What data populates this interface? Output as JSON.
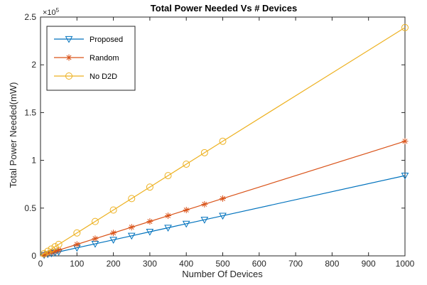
{
  "chart_data": {
    "type": "line",
    "title": "Total Power Needed Vs # Devices",
    "xlabel": "Number Of Devices",
    "ylabel": "Total Power Needed(mW)",
    "xlim": [
      0,
      1000
    ],
    "ylim": [
      0,
      250000
    ],
    "y_exponent_label": "×10",
    "y_exponent_power": "5",
    "x_ticks": [
      "0",
      "100",
      "200",
      "300",
      "400",
      "500",
      "600",
      "700",
      "800",
      "900",
      "1000"
    ],
    "y_ticks": [
      "0",
      "0.5",
      "1",
      "1.5",
      "2",
      "2.5"
    ],
    "grid": false,
    "legend_position": "top-left",
    "series": [
      {
        "name": "Proposed",
        "color": "#0072BD",
        "marker": "triangle-down",
        "x": [
          10,
          20,
          30,
          40,
          50,
          100,
          150,
          200,
          250,
          300,
          350,
          400,
          450,
          500,
          1000
        ],
        "y": [
          840,
          1680,
          2520,
          3360,
          4200,
          8400,
          12600,
          16800,
          21000,
          25200,
          29400,
          33600,
          37800,
          42000,
          84000
        ]
      },
      {
        "name": "Random",
        "color": "#D95319",
        "marker": "star",
        "x": [
          10,
          20,
          30,
          40,
          50,
          100,
          150,
          200,
          250,
          300,
          350,
          400,
          450,
          500,
          1000
        ],
        "y": [
          1200,
          2400,
          3600,
          4800,
          6000,
          12000,
          18000,
          24000,
          30000,
          36000,
          42000,
          48000,
          54000,
          60000,
          120000
        ]
      },
      {
        "name": "No D2D",
        "color": "#EDB120",
        "marker": "circle",
        "x": [
          10,
          20,
          30,
          40,
          50,
          100,
          150,
          200,
          250,
          300,
          350,
          400,
          450,
          500,
          1000
        ],
        "y": [
          2400,
          4800,
          7200,
          9600,
          12000,
          24000,
          36000,
          48000,
          60000,
          72000,
          84000,
          96000,
          108000,
          120000,
          239000
        ]
      }
    ]
  }
}
